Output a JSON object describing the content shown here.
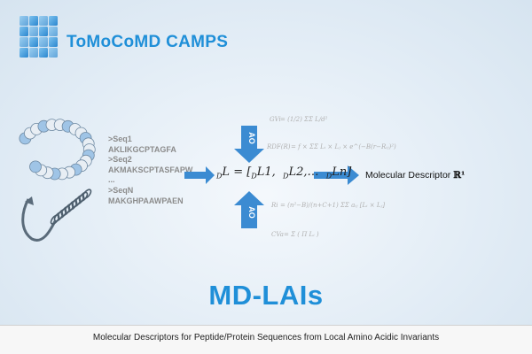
{
  "header": {
    "title": "ToMoCoMD CAMPS"
  },
  "sequences": [
    ">Seq1",
    "AKLIKGCPTAGFA",
    ">Seq2",
    "AKMAKSCPTASFAPW",
    "...",
    ">SeqN",
    "MAKGHPAAWPAEN"
  ],
  "operators": {
    "top": "AO",
    "bottom": "AO"
  },
  "formula": {
    "left_sub": "D",
    "L": "L",
    "elements": [
      "L1",
      "L2",
      "Ln"
    ]
  },
  "output": {
    "label": "Molecular Descriptor",
    "symbol": "ℝ¹"
  },
  "invariants": [
    "GVi",
    "RDF(R)",
    "Ri",
    "CVa"
  ],
  "main_title": "MD-LAIs",
  "footer": {
    "caption": "Molecular Descriptors for Peptide/Protein Sequences from Local Amino Acidic Invariants"
  },
  "colors": {
    "brand": "#1f8fd8",
    "arrow": "#3b8bd2",
    "arrow_dark": "#2c70b0"
  },
  "icons": {
    "logo": "cube-logo-icon",
    "protein": "protein-chain-icon"
  }
}
